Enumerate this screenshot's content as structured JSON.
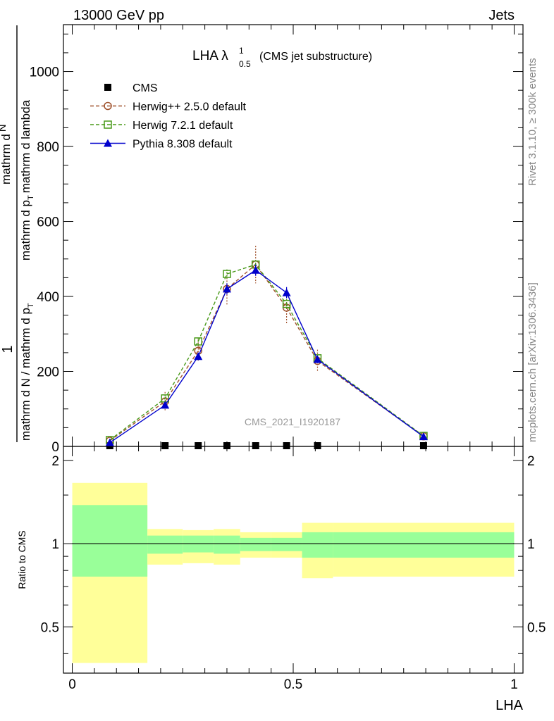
{
  "header": {
    "left": "13000 GeV pp",
    "right": "Jets"
  },
  "side_labels": {
    "top": "Rivet 3.1.10, ≥ 300k events",
    "bottom": "mcplots.cern.ch [arXiv:1306.3436]"
  },
  "watermark": "CMS_2021_I1920187",
  "chart_data": [
    {
      "type": "line",
      "panel": "main",
      "title": "LHA λ",
      "title_sup": "1",
      "title_sub": "0.5",
      "title_suffix": "(CMS jet substructure)",
      "ylabel_numerator": "1",
      "ylabel_denominator": "mathrm d N / mathrm d p",
      "ylabel_denominator_sub": "T",
      "ylabel_fraction": "mathrm d",
      "ylabel_fraction_tail": "N",
      "ylabel_fraction_line2": "mathrm d p",
      "ylabel_fraction_line2_sub": "T",
      "ylabel_fraction_line2_tail": "mathrm d lambda",
      "ylim": [
        0,
        1125
      ],
      "xlim": [
        -0.02,
        1.02
      ],
      "yticks": [
        0,
        200,
        400,
        600,
        800,
        1000
      ],
      "ytick_labels": [
        "0",
        "200",
        "400",
        "600",
        "800",
        "1000"
      ],
      "legend_position": "top-left",
      "series": [
        {
          "name": "CMS",
          "color": "#000000",
          "marker": "square-filled",
          "style": "none",
          "x": [
            0.085,
            0.21,
            0.285,
            0.35,
            0.415,
            0.485,
            0.555,
            0.795
          ],
          "y": [
            0,
            0,
            0,
            0,
            0,
            0,
            0,
            0
          ]
        },
        {
          "name": "Herwig++ 2.5.0 default",
          "color": "#a0522d",
          "marker": "circle-open",
          "style": "dashed",
          "x": [
            0.085,
            0.21,
            0.285,
            0.35,
            0.415,
            0.485,
            0.555,
            0.795
          ],
          "y": [
            15,
            120,
            255,
            420,
            485,
            370,
            228,
            27
          ],
          "err": [
            5,
            25,
            30,
            45,
            50,
            45,
            30,
            8
          ]
        },
        {
          "name": "Herwig 7.2.1 default",
          "color": "#4a9a1a",
          "marker": "square-open",
          "style": "dashed",
          "x": [
            0.085,
            0.21,
            0.285,
            0.35,
            0.415,
            0.485,
            0.555,
            0.795
          ],
          "y": [
            17,
            128,
            280,
            460,
            485,
            380,
            235,
            28
          ],
          "err": [
            3,
            10,
            10,
            12,
            12,
            12,
            10,
            3
          ]
        },
        {
          "name": "Pythia 8.308 default",
          "color": "#0000cc",
          "marker": "triangle-filled",
          "style": "solid",
          "x": [
            0.085,
            0.21,
            0.285,
            0.35,
            0.415,
            0.485,
            0.555,
            0.795
          ],
          "y": [
            10,
            110,
            240,
            420,
            470,
            410,
            232,
            26
          ],
          "err": [
            3,
            8,
            10,
            15,
            15,
            15,
            10,
            3
          ]
        }
      ]
    },
    {
      "type": "area",
      "panel": "ratio",
      "ylabel": "Ratio to CMS",
      "xlabel": "LHA",
      "xlim": [
        -0.02,
        1.02
      ],
      "ylim": [
        0.34,
        2.25
      ],
      "xticks": [
        0,
        0.5,
        1
      ],
      "xtick_labels": [
        "0",
        "0.5",
        "1"
      ],
      "yticks": [
        0.5,
        1,
        2
      ],
      "ytick_labels": [
        "0.5",
        "1",
        "2"
      ],
      "reference_line": 1,
      "bins": [
        {
          "x0": 0.0,
          "x1": 0.17,
          "inner": [
            0.76,
            1.38
          ],
          "outer": [
            0.37,
            1.66
          ]
        },
        {
          "x0": 0.17,
          "x1": 0.25,
          "inner": [
            0.92,
            1.07
          ],
          "outer": [
            0.84,
            1.13
          ]
        },
        {
          "x0": 0.25,
          "x1": 0.32,
          "inner": [
            0.93,
            1.07
          ],
          "outer": [
            0.85,
            1.12
          ]
        },
        {
          "x0": 0.32,
          "x1": 0.38,
          "inner": [
            0.92,
            1.07
          ],
          "outer": [
            0.84,
            1.13
          ]
        },
        {
          "x0": 0.38,
          "x1": 0.45,
          "inner": [
            0.94,
            1.05
          ],
          "outer": [
            0.89,
            1.1
          ]
        },
        {
          "x0": 0.45,
          "x1": 0.52,
          "inner": [
            0.94,
            1.05
          ],
          "outer": [
            0.89,
            1.1
          ]
        },
        {
          "x0": 0.52,
          "x1": 0.59,
          "inner": [
            0.89,
            1.1
          ],
          "outer": [
            0.75,
            1.19
          ]
        },
        {
          "x0": 0.59,
          "x1": 1.0,
          "inner": [
            0.89,
            1.1
          ],
          "outer": [
            0.76,
            1.19
          ]
        }
      ],
      "colors": {
        "inner": "#99ff99",
        "outer": "#ffff99"
      }
    }
  ]
}
